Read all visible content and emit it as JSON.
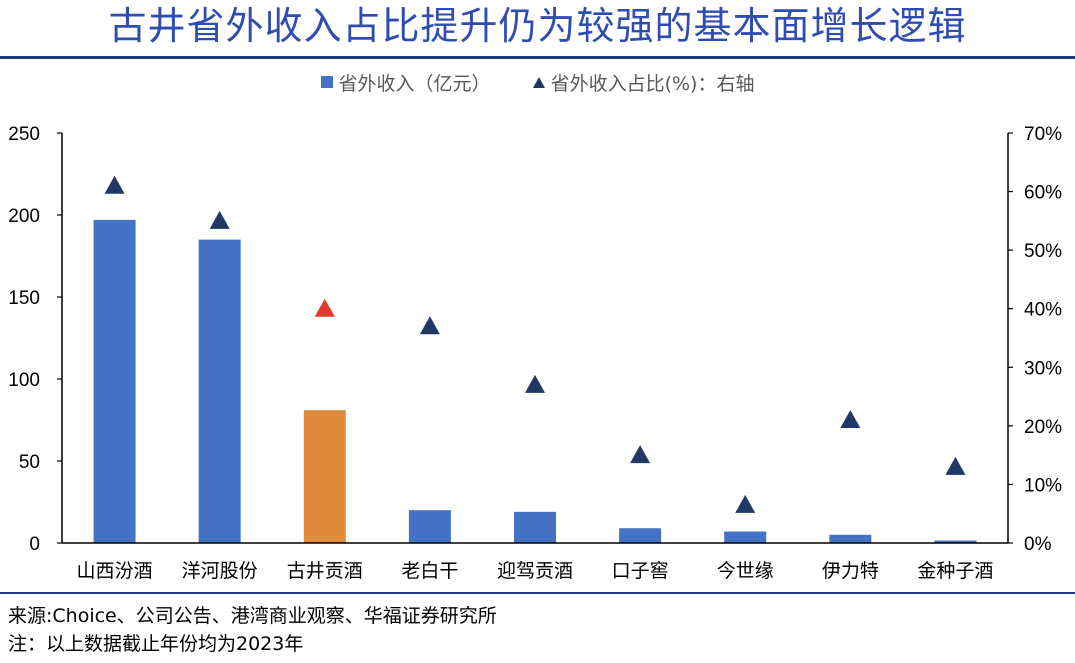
{
  "title": "古井省外收入占比提升仍为较强的基本面增长逻辑",
  "colors": {
    "title": "#2f4db0",
    "bar": "#4472c4",
    "bar_highlight": "#e08a3c",
    "marker": "#1f3864",
    "marker_highlight": "#e03a2a"
  },
  "legend": {
    "bar_label": "省外收入（亿元）",
    "marker_label": "省外收入占比(%)：右轴"
  },
  "chart_data": {
    "type": "bar",
    "categories": [
      "山西汾酒",
      "洋河股份",
      "古井贡酒",
      "老白干",
      "迎驾贡酒",
      "口子窖",
      "今世缘",
      "伊力特",
      "金种子酒"
    ],
    "series": [
      {
        "name": "省外收入（亿元）",
        "type": "bar",
        "axis": "left",
        "values": [
          197,
          185,
          81,
          20,
          19,
          9,
          7,
          5,
          1.5
        ]
      },
      {
        "name": "省外收入占比(%)：右轴",
        "type": "scatter",
        "marker": "triangle",
        "axis": "right",
        "values": [
          61,
          55,
          40,
          37,
          27,
          15,
          6.5,
          21,
          13
        ]
      }
    ],
    "highlight_index": 2,
    "ylim_left": [
      0,
      250
    ],
    "yticks_left": [
      "0",
      "50",
      "100",
      "150",
      "200",
      "250"
    ],
    "ylim_right": [
      0,
      70
    ],
    "yticks_right": [
      "0%",
      "10%",
      "20%",
      "30%",
      "40%",
      "50%",
      "60%",
      "70%"
    ],
    "grid": false,
    "legend_position": "top-center"
  },
  "source_note": "来源:Choice、公司公告、港湾商业观察、华福证券研究所",
  "footnote": "注：以上数据截止年份均为2023年"
}
